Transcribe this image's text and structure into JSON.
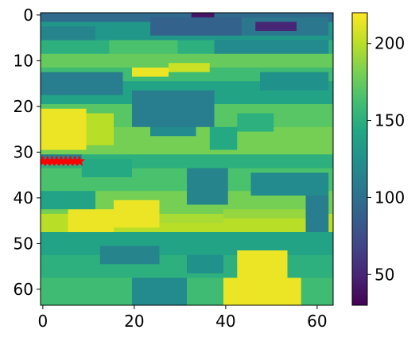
{
  "chart_data": {
    "type": "heatmap",
    "title": "",
    "xlabel": "",
    "ylabel": "",
    "grid": false,
    "grid_size": [
      64,
      64
    ],
    "xlim": [
      -0.5,
      63.5
    ],
    "ylim": [
      63.5,
      -0.5
    ],
    "x_ticks": [
      0,
      20,
      40,
      60
    ],
    "y_ticks": [
      0,
      10,
      20,
      30,
      40,
      50,
      60
    ],
    "colormap": "viridis",
    "colorbar": {
      "range": [
        30,
        220
      ],
      "ticks": [
        50,
        100,
        150,
        200
      ],
      "position": "right"
    },
    "bands": [
      {
        "y": [
          0,
          2
        ],
        "value": 95
      },
      {
        "y": [
          2,
          6
        ],
        "value": 130
      },
      {
        "y": [
          6,
          9
        ],
        "value": 150
      },
      {
        "y": [
          9,
          12
        ],
        "value": 175
      },
      {
        "y": [
          12,
          15
        ],
        "value": 160
      },
      {
        "y": [
          15,
          20
        ],
        "value": 140
      },
      {
        "y": [
          20,
          25
        ],
        "value": 170
      },
      {
        "y": [
          25,
          31
        ],
        "value": 180
      },
      {
        "y": [
          31,
          34
        ],
        "value": 150
      },
      {
        "y": [
          34,
          39
        ],
        "value": 165
      },
      {
        "y": [
          39,
          44
        ],
        "value": 180
      },
      {
        "y": [
          44,
          48
        ],
        "value": 200
      },
      {
        "y": [
          48,
          53
        ],
        "value": 140
      },
      {
        "y": [
          53,
          58
        ],
        "value": 150
      },
      {
        "y": [
          58,
          64
        ],
        "value": 160
      }
    ],
    "regions": [
      {
        "x": [
          33,
          38
        ],
        "y": [
          0,
          2
        ],
        "value": 40
      },
      {
        "x": [
          24,
          44
        ],
        "y": [
          1,
          5
        ],
        "value": 90
      },
      {
        "x": [
          44,
          63
        ],
        "y": [
          1,
          5
        ],
        "value": 105
      },
      {
        "x": [
          47,
          56
        ],
        "y": [
          2,
          4
        ],
        "value": 50
      },
      {
        "x": [
          0,
          12
        ],
        "y": [
          3,
          6
        ],
        "value": 115
      },
      {
        "x": [
          15,
          30
        ],
        "y": [
          6,
          9
        ],
        "value": 165
      },
      {
        "x": [
          38,
          63
        ],
        "y": [
          6,
          9
        ],
        "value": 120
      },
      {
        "x": [
          20,
          28
        ],
        "y": [
          12,
          14
        ],
        "value": 215
      },
      {
        "x": [
          28,
          37
        ],
        "y": [
          11,
          13
        ],
        "value": 205
      },
      {
        "x": [
          0,
          18
        ],
        "y": [
          13,
          18
        ],
        "value": 110
      },
      {
        "x": [
          48,
          63
        ],
        "y": [
          13,
          17
        ],
        "value": 125
      },
      {
        "x": [
          20,
          38
        ],
        "y": [
          17,
          25
        ],
        "value": 110
      },
      {
        "x": [
          24,
          34
        ],
        "y": [
          25,
          27
        ],
        "value": 120
      },
      {
        "x": [
          0,
          10
        ],
        "y": [
          21,
          30
        ],
        "value": 215
      },
      {
        "x": [
          10,
          16
        ],
        "y": [
          22,
          29
        ],
        "value": 200
      },
      {
        "x": [
          37,
          43
        ],
        "y": [
          25,
          30
        ],
        "value": 145
      },
      {
        "x": [
          43,
          51
        ],
        "y": [
          22,
          26
        ],
        "value": 150
      },
      {
        "x": [
          0,
          9
        ],
        "y": [
          31,
          33
        ],
        "value": 110
      },
      {
        "x": [
          9,
          20
        ],
        "y": [
          32,
          36
        ],
        "value": 145
      },
      {
        "x": [
          32,
          41
        ],
        "y": [
          34,
          42
        ],
        "value": 115
      },
      {
        "x": [
          46,
          63
        ],
        "y": [
          35,
          40
        ],
        "value": 120
      },
      {
        "x": [
          0,
          12
        ],
        "y": [
          39,
          43
        ],
        "value": 140
      },
      {
        "x": [
          6,
          16
        ],
        "y": [
          43,
          48
        ],
        "value": 215
      },
      {
        "x": [
          16,
          26
        ],
        "y": [
          41,
          47
        ],
        "value": 215
      },
      {
        "x": [
          26,
          40
        ],
        "y": [
          44,
          46
        ],
        "value": 195
      },
      {
        "x": [
          40,
          63
        ],
        "y": [
          43,
          45
        ],
        "value": 190
      },
      {
        "x": [
          58,
          63
        ],
        "y": [
          40,
          48
        ],
        "value": 110
      },
      {
        "x": [
          13,
          26
        ],
        "y": [
          51,
          55
        ],
        "value": 115
      },
      {
        "x": [
          32,
          40
        ],
        "y": [
          53,
          57
        ],
        "value": 125
      },
      {
        "x": [
          20,
          32
        ],
        "y": [
          58,
          64
        ],
        "value": 120
      },
      {
        "x": [
          43,
          54
        ],
        "y": [
          52,
          58
        ],
        "value": 215
      },
      {
        "x": [
          40,
          57
        ],
        "y": [
          58,
          64
        ],
        "value": 215
      },
      {
        "x": [
          0,
          3
        ],
        "y": [
          61,
          64
        ],
        "value": 160
      }
    ],
    "marker_series": {
      "marker": "star",
      "color": "#ff0000",
      "x": [
        0,
        1,
        2,
        3,
        4,
        5,
        6,
        7,
        8
      ],
      "y": [
        32,
        32,
        32,
        32,
        32,
        32,
        32,
        32,
        32
      ]
    }
  }
}
